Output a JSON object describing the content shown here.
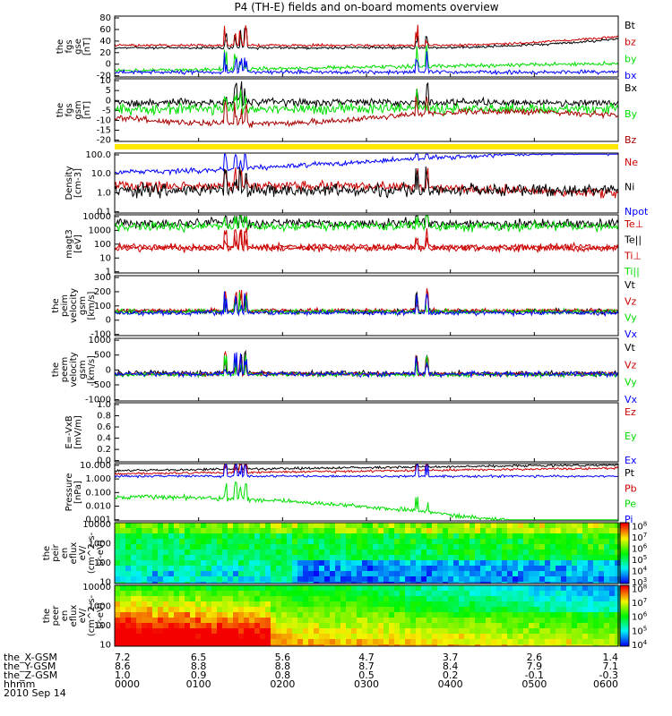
{
  "chart_data": {
    "type": "line",
    "title": "P4 (TH-E) fields and on-board moments overview",
    "time_axis": {
      "ticks_hhmm": [
        "0000",
        "0100",
        "0200",
        "0300",
        "0400",
        "0500",
        "0600"
      ],
      "date": "2010 Sep 14",
      "ephemeris": [
        {
          "label": "the_X-GSM",
          "values": [
            "7.2",
            "6.5",
            "5.6",
            "4.7",
            "3.7",
            "2.6",
            "1.4"
          ]
        },
        {
          "label": "the_Y-GSM",
          "values": [
            "8.6",
            "8.8",
            "8.8",
            "8.7",
            "8.4",
            "7.9",
            "7.1"
          ]
        },
        {
          "label": "the_Z-GSM",
          "values": [
            "1.0",
            "0.9",
            "0.8",
            "0.5",
            "0.2",
            "-0.1",
            "-0.3"
          ]
        },
        {
          "label": "hhmm",
          "values": [
            "0000",
            "0100",
            "0200",
            "0300",
            "0400",
            "0500",
            "0600"
          ]
        }
      ]
    },
    "panels": [
      {
        "id": "fgs_gse",
        "ylabel": [
          "the",
          "fgs",
          "gse",
          "[nT]"
        ],
        "ylim": [
          -20,
          85
        ],
        "yticks": [
          "-20",
          "0",
          "20",
          "40",
          "60",
          "80"
        ],
        "series": [
          {
            "name": "Bt",
            "color": "#000000"
          },
          {
            "name": "bz",
            "color": "#cc0000"
          },
          {
            "name": "by",
            "color": "#00dd00"
          },
          {
            "name": "bx",
            "color": "#0000ff"
          }
        ]
      },
      {
        "id": "fgs_gsm",
        "ylabel": [
          "the",
          "fgs",
          "gsm",
          "[nT]"
        ],
        "ylim": [
          -22,
          12
        ],
        "yticks": [
          "-20",
          "-15",
          "-10",
          "-5",
          "0",
          "5",
          "10"
        ],
        "series": [
          {
            "name": "Bx",
            "color": "#000000"
          },
          {
            "name": "By",
            "color": "#00dd00"
          },
          {
            "name": "Bz",
            "color": "#aa0000"
          }
        ]
      },
      {
        "id": "density",
        "ylabel": [
          "Density",
          "[cm-3]"
        ],
        "log": true,
        "yticks": [
          "0.1",
          "1.0",
          "10.0",
          "100.0"
        ],
        "series": [
          {
            "name": "Ne",
            "color": "#cc0000"
          },
          {
            "name": "Ni",
            "color": "#000000"
          },
          {
            "name": "Npot",
            "color": "#0000ff"
          }
        ]
      },
      {
        "id": "temperature",
        "ylabel": [
          "magt3",
          "[eV]"
        ],
        "log": true,
        "yticks": [
          "1",
          "10",
          "100",
          "1000",
          "10000"
        ],
        "series": [
          {
            "name": "Te⊥",
            "color": "#cc0000"
          },
          {
            "name": "Te||",
            "color": "#000000"
          },
          {
            "name": "Ti⊥",
            "color": "#cc0000"
          },
          {
            "name": "Ti||",
            "color": "#00dd00"
          }
        ]
      },
      {
        "id": "peim_vel",
        "ylabel": [
          "the",
          "peim",
          "velocity",
          "gsm",
          "[km/s]"
        ],
        "ylim": [
          -200,
          300
        ],
        "yticks": [
          "-100",
          "0",
          "100",
          "200",
          "300"
        ],
        "series": [
          {
            "name": "Vt",
            "color": "#000000"
          },
          {
            "name": "Vz",
            "color": "#cc0000"
          },
          {
            "name": "Vy",
            "color": "#00dd00"
          },
          {
            "name": "Vx",
            "color": "#0000ff"
          }
        ]
      },
      {
        "id": "peem_vel",
        "ylabel": [
          "the",
          "peem",
          "velocity",
          "gsm",
          "[km/s]"
        ],
        "ylim": [
          -1000,
          1200
        ],
        "yticks": [
          "-1000",
          "-500",
          "0",
          "500",
          "1000"
        ],
        "series": [
          {
            "name": "Vt",
            "color": "#000000"
          },
          {
            "name": "Vz",
            "color": "#cc0000"
          },
          {
            "name": "Vy",
            "color": "#00dd00"
          },
          {
            "name": "Vx",
            "color": "#0000ff"
          }
        ]
      },
      {
        "id": "efield",
        "ylabel": [
          "E=-VxB",
          "[mV/m]"
        ],
        "ylim": [
          0,
          1
        ],
        "yticks": [
          "0.0",
          "0.2",
          "0.4",
          "0.6",
          "0.8",
          "1.0"
        ],
        "series": [
          {
            "name": "Ez",
            "color": "#cc0000"
          },
          {
            "name": "Ey",
            "color": "#00dd00"
          },
          {
            "name": "Ex",
            "color": "#0000ff"
          }
        ]
      },
      {
        "id": "pressure",
        "ylabel": [
          "Pressure",
          "[nPa]"
        ],
        "log": true,
        "yticks": [
          "0.001",
          "0.010",
          "0.100",
          "1.000",
          "10.000"
        ],
        "series": [
          {
            "name": "Pt",
            "color": "#000000"
          },
          {
            "name": "Pb",
            "color": "#cc0000"
          },
          {
            "name": "Pe",
            "color": "#00dd00"
          },
          {
            "name": "Pi",
            "color": "#0000ff"
          }
        ]
      },
      {
        "id": "peir_spec",
        "type": "heatmap",
        "ylabel": [
          "the",
          "peir",
          "en",
          "eflux",
          "eV/",
          "(cm^2-s-",
          "sr-eV)"
        ],
        "yticks": [
          "10",
          "100",
          "1000",
          "10000"
        ],
        "colorbar": [
          "10^3",
          "10^4",
          "10^5",
          "10^6",
          "10^7",
          "10^8"
        ]
      },
      {
        "id": "peer_spec",
        "type": "heatmap",
        "ylabel": [
          "the",
          "peer",
          "en",
          "eflux",
          "eV/",
          "(cm^2-s-",
          "sr-eV)"
        ],
        "yticks": [
          "10",
          "100",
          "1000",
          "10000"
        ],
        "colorbar": [
          "10^4",
          "10^5",
          "10^6",
          "10^7",
          "10^8"
        ]
      }
    ]
  }
}
